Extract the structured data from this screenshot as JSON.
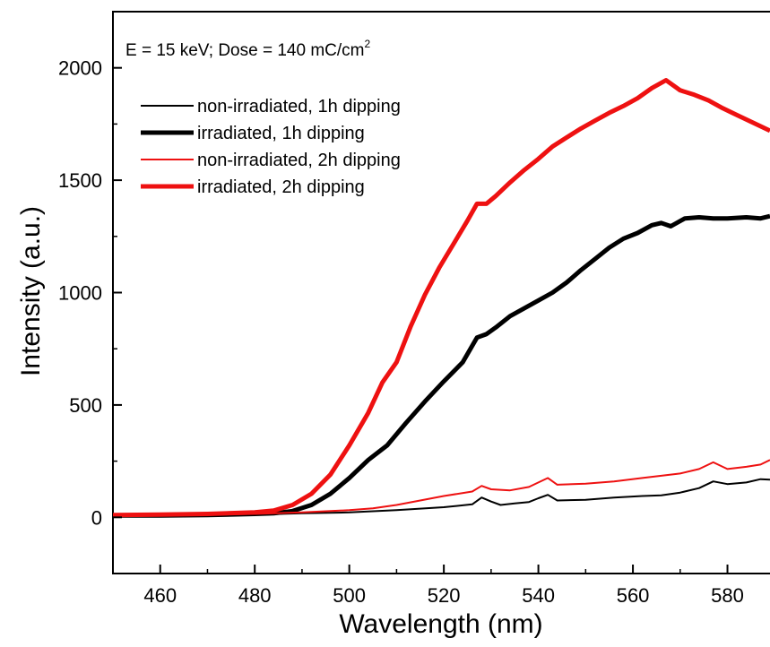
{
  "chart_data": {
    "type": "line",
    "title": "",
    "xlabel": "Wavelength (nm)",
    "ylabel": "Intensity (a.u.)",
    "xlim": [
      450,
      589
    ],
    "ylim": [
      -250,
      2250
    ],
    "xticks": [
      460,
      480,
      500,
      520,
      540,
      560,
      580
    ],
    "yticks": [
      0,
      500,
      1000,
      1500,
      2000
    ],
    "grid": false,
    "legend_position": "top-left",
    "annotation": {
      "text": "E = 15 keV; Dose = 140 mC/cm",
      "superscript": "2"
    },
    "series": [
      {
        "name": "non-irradiated, 1h dipping",
        "color": "#000000",
        "weight": "thin",
        "x": [
          450,
          460,
          470,
          480,
          490,
          500,
          510,
          520,
          526,
          528,
          530,
          532,
          535,
          538,
          540,
          542,
          544,
          550,
          556,
          562,
          566,
          570,
          574,
          577,
          580,
          584,
          587,
          589
        ],
        "y": [
          10,
          8,
          10,
          12,
          18,
          22,
          32,
          45,
          58,
          88,
          70,
          55,
          62,
          68,
          85,
          100,
          75,
          78,
          88,
          95,
          98,
          110,
          130,
          160,
          148,
          155,
          170,
          168
        ]
      },
      {
        "name": "irradiated, 1h dipping",
        "color": "#000000",
        "weight": "thick",
        "x": [
          450,
          460,
          470,
          480,
          484,
          488,
          492,
          496,
          500,
          504,
          508,
          512,
          516,
          520,
          524,
          527,
          529,
          531,
          534,
          537,
          540,
          543,
          546,
          549,
          552,
          555,
          558,
          561,
          564,
          566,
          568,
          571,
          574,
          577,
          580,
          584,
          587,
          589
        ],
        "y": [
          8,
          8,
          10,
          15,
          18,
          28,
          55,
          105,
          175,
          255,
          320,
          420,
          515,
          605,
          690,
          800,
          815,
          845,
          895,
          930,
          965,
          1000,
          1045,
          1100,
          1150,
          1200,
          1240,
          1265,
          1300,
          1310,
          1295,
          1330,
          1335,
          1330,
          1330,
          1335,
          1330,
          1340
        ]
      },
      {
        "name": "non-irradiated, 2h dipping",
        "color": "#ee1111",
        "weight": "thin",
        "x": [
          450,
          460,
          470,
          480,
          490,
          500,
          505,
          510,
          515,
          520,
          526,
          528,
          530,
          534,
          538,
          540,
          542,
          544,
          550,
          556,
          562,
          566,
          570,
          574,
          577,
          580,
          584,
          587,
          589
        ],
        "y": [
          12,
          10,
          12,
          15,
          22,
          32,
          40,
          55,
          75,
          95,
          115,
          140,
          125,
          120,
          135,
          155,
          175,
          145,
          150,
          160,
          175,
          185,
          195,
          215,
          245,
          215,
          225,
          235,
          255
        ]
      },
      {
        "name": "irradiated, 2h dipping",
        "color": "#ee1111",
        "weight": "thick",
        "x": [
          450,
          460,
          470,
          480,
          484,
          488,
          492,
          496,
          500,
          504,
          507,
          510,
          513,
          516,
          519,
          522,
          525,
          527,
          529,
          531,
          534,
          537,
          540,
          543,
          546,
          549,
          552,
          555,
          558,
          561,
          564,
          567,
          570,
          573,
          576,
          579,
          582,
          585,
          589
        ],
        "y": [
          10,
          12,
          15,
          22,
          30,
          55,
          105,
          190,
          320,
          465,
          600,
          690,
          850,
          990,
          1110,
          1215,
          1320,
          1395,
          1395,
          1430,
          1490,
          1545,
          1595,
          1650,
          1690,
          1730,
          1765,
          1800,
          1830,
          1865,
          1910,
          1945,
          1900,
          1880,
          1855,
          1820,
          1790,
          1760,
          1720
        ]
      }
    ]
  }
}
